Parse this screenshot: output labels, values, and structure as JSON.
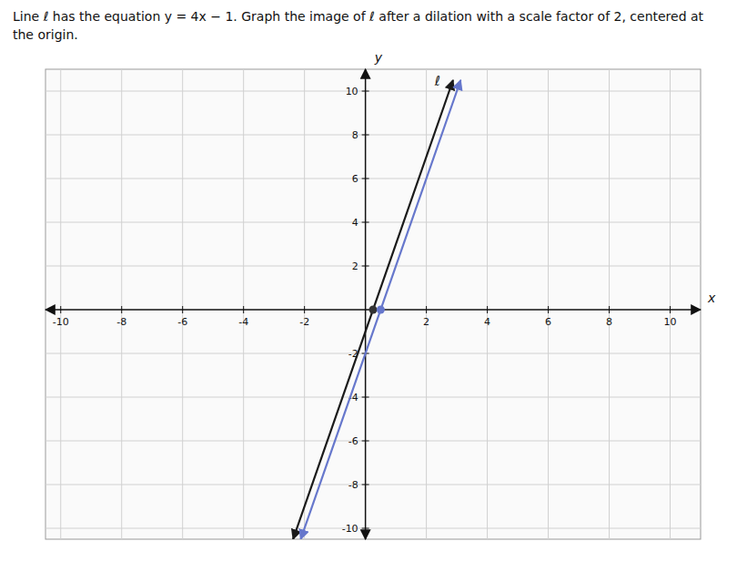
{
  "chart_data": {
    "type": "line",
    "title": "Line ℓ has the equation y = 4x − 1. Graph the image of ℓ after a dilation with a scale factor of 2, centered at the origin.",
    "xlabel": "x",
    "ylabel": "y",
    "xlim": [
      -10.5,
      11.0
    ],
    "ylim": [
      -10.5,
      11.0
    ],
    "xticks": [
      -10,
      -8,
      -6,
      -4,
      -2,
      2,
      4,
      6,
      8,
      10
    ],
    "yticks": [
      -10,
      -8,
      -6,
      -4,
      -2,
      2,
      4,
      6,
      8,
      10
    ],
    "grid": true,
    "series": [
      {
        "name": "ℓ",
        "color": "#1a1a1a",
        "x": [
          -2.375,
          2.875
        ],
        "values": [
          -10.5,
          10.5
        ]
      },
      {
        "color": "#6677cc",
        "x": [
          -2.125,
          3.125
        ],
        "values": [
          -10.5,
          10.5
        ]
      },
      {
        "type": "scatter",
        "color": "#333333",
        "x": [
          0.25
        ],
        "values": [
          0.0
        ]
      },
      {
        "type": "scatter",
        "color": "#6677cc",
        "x": [
          0.5
        ],
        "values": [
          0.0
        ]
      }
    ]
  }
}
